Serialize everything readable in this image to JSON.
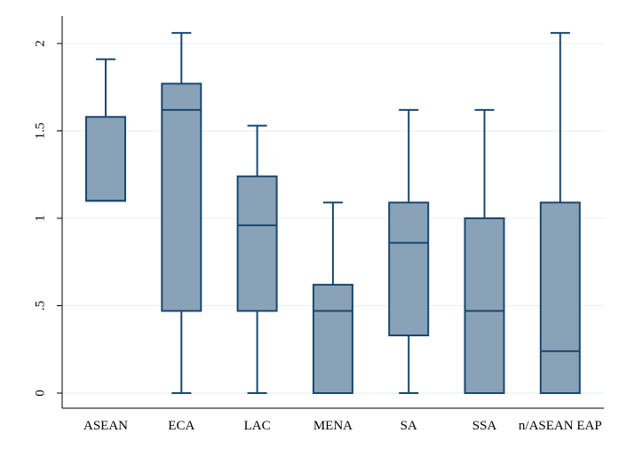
{
  "chart_data": {
    "type": "box",
    "title": "",
    "xlabel": "",
    "ylabel": "",
    "ylim": [
      0,
      2
    ],
    "y_ticks": [
      0,
      0.5,
      1,
      1.5,
      2
    ],
    "y_tick_labels": [
      "0",
      ".5",
      "1",
      "1.5",
      "2"
    ],
    "grid": true,
    "colors": {
      "fill": "#8aa2b8",
      "stroke": "#1a476f",
      "grid": "#eaf0f3"
    },
    "categories": [
      "ASEAN",
      "ECA",
      "LAC",
      "MENA",
      "SA",
      "SSA",
      "n/ASEAN EAP"
    ],
    "boxes": [
      {
        "min": 1.1,
        "q1": 1.1,
        "median": 1.1,
        "q3": 1.58,
        "max": 1.91
      },
      {
        "min": 0,
        "q1": 0.47,
        "median": 1.62,
        "q3": 1.77,
        "max": 2.06
      },
      {
        "min": 0,
        "q1": 0.47,
        "median": 0.96,
        "q3": 1.24,
        "max": 1.53
      },
      {
        "min": 0,
        "q1": 0,
        "median": 0.47,
        "q3": 0.62,
        "max": 1.09
      },
      {
        "min": 0,
        "q1": 0.33,
        "median": 0.86,
        "q3": 1.09,
        "max": 1.62
      },
      {
        "min": 0,
        "q1": 0,
        "median": 0.47,
        "q3": 1.0,
        "max": 1.62
      },
      {
        "min": 0,
        "q1": 0,
        "median": 0.24,
        "q3": 1.09,
        "max": 2.06
      }
    ]
  }
}
